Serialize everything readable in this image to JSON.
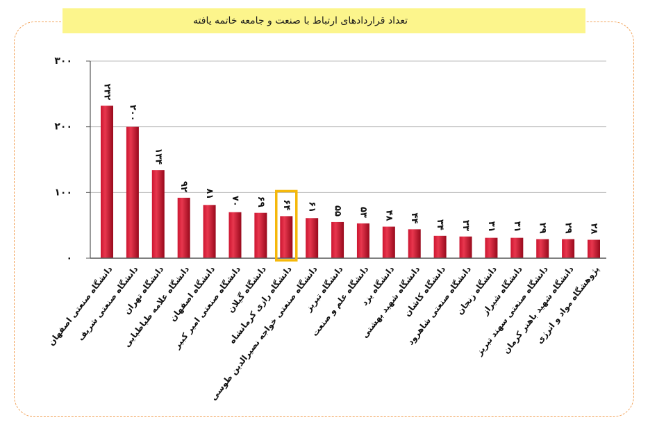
{
  "colors": {
    "bar": "#cc1530",
    "bar_light": "#e8374e",
    "bar_dark": "#98091c",
    "highlight": "#f5b80a",
    "banner": "#fcf58c",
    "frame": "#f2a45c",
    "grid": "#b8b8b8",
    "axis": "#555555"
  },
  "chart_data": {
    "type": "bar",
    "title": "تعداد قراردادهای ارتباط با صنعت و جامعه خاتمه یافته",
    "xlabel": "",
    "ylabel": "",
    "categories": [
      "دانشگاه صنعتی اصفهان",
      "دانشگاه صنعتی شریف",
      "دانشگاه تهران",
      "دانشگاه علامه طباطبایی",
      "دانشگاه اصفهان",
      "دانشگاه صنعتی امیر کبیر",
      "دانشگاه گیلان",
      "دانشگاه رازی کرمانشاه",
      "دانشگاه صنعتی خواجه نصیرالدین طوسی",
      "دانشگاه تبریز",
      "دانشگاه علم و صنعت",
      "دانشگاه یزد",
      "دانشگاه شهید بهشتی",
      "دانشگاه کاشان",
      "دانشگاه صنعتی شاهرود",
      "دانشگاه زنجان",
      "دانشگاه شیراز",
      "دانشگاه صنعتی سهند تبریز",
      "دانشگاه شهید باهنر کرمان",
      "پژوهشگاه مواد و انرژی"
    ],
    "values": [
      232,
      200,
      134,
      92,
      81,
      70,
      69,
      64,
      61,
      55,
      53,
      48,
      44,
      34,
      33,
      31,
      31,
      29,
      29,
      28
    ],
    "data_labels": [
      "۲۳۲",
      "۲۰۰",
      "۱۳۴",
      "۹۲",
      "۸۱",
      "۷۰",
      "۶۹",
      "۶۴",
      "۶۱",
      "۵۵",
      "۵۳",
      "۴۸",
      "۴۴",
      "۳۴",
      "۳۳",
      "۳۱",
      "۳۱",
      "۲۹",
      "۲۹",
      "۲۸"
    ],
    "yticks": [
      0,
      100,
      200,
      300
    ],
    "ytick_labels": [
      "۰",
      "۱۰۰",
      "۲۰۰",
      "۳۰۰"
    ],
    "ylim": [
      0,
      300
    ],
    "grid": true,
    "highlight_index": 7
  }
}
